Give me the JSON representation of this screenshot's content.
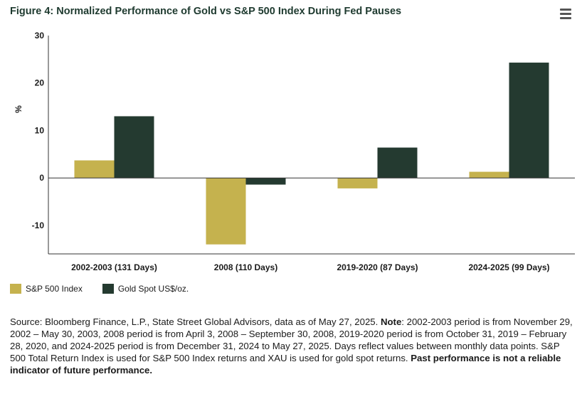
{
  "chart_data": {
    "type": "bar",
    "title": "Figure 4: Normalized Performance of Gold vs S&P 500 Index During Fed Pauses",
    "ylabel": "%",
    "xlabel": "",
    "ylim": [
      -16,
      30
    ],
    "yticks": [
      30,
      20,
      10,
      0,
      -10
    ],
    "grid": false,
    "legend_placement": "bottom-left",
    "categories": [
      "2002-2003 (131 Days)",
      "2008 (110 Days)",
      "2019-2020 (87 Days)",
      "2024-2025 (99 Days)"
    ],
    "series": [
      {
        "name": "S&P 500 Index",
        "color": "#c5b24e",
        "values": [
          3.7,
          -14.0,
          -2.2,
          1.3
        ]
      },
      {
        "name": "Gold Spot US$/oz.",
        "color": "#243a30",
        "values": [
          13.0,
          -1.4,
          6.4,
          24.3
        ]
      }
    ]
  },
  "menu": {
    "icon": "hamburger-menu-icon"
  },
  "footnote": {
    "source_text": "Source: Bloomberg Finance, L.P., State Street Global Advisors, data as of May 27, 2025. ",
    "note_label": "Note",
    "note_text": ": 2002-2003 period is from November 29, 2002 – May 30, 2003, 2008 period is from April 3, 2008 – September 30, 2008, 2019-2020 period is from October 31, 2019 – February 28, 2020, and 2024-2025 period is from December 31, 2024 to May 27, 2025. Days reflect values between monthly data points. S&P 500 Total Return Index is used for S&P 500 Index returns and XAU is used for gold spot returns. ",
    "disclaimer": "Past performance is not a reliable indicator of future performance."
  }
}
